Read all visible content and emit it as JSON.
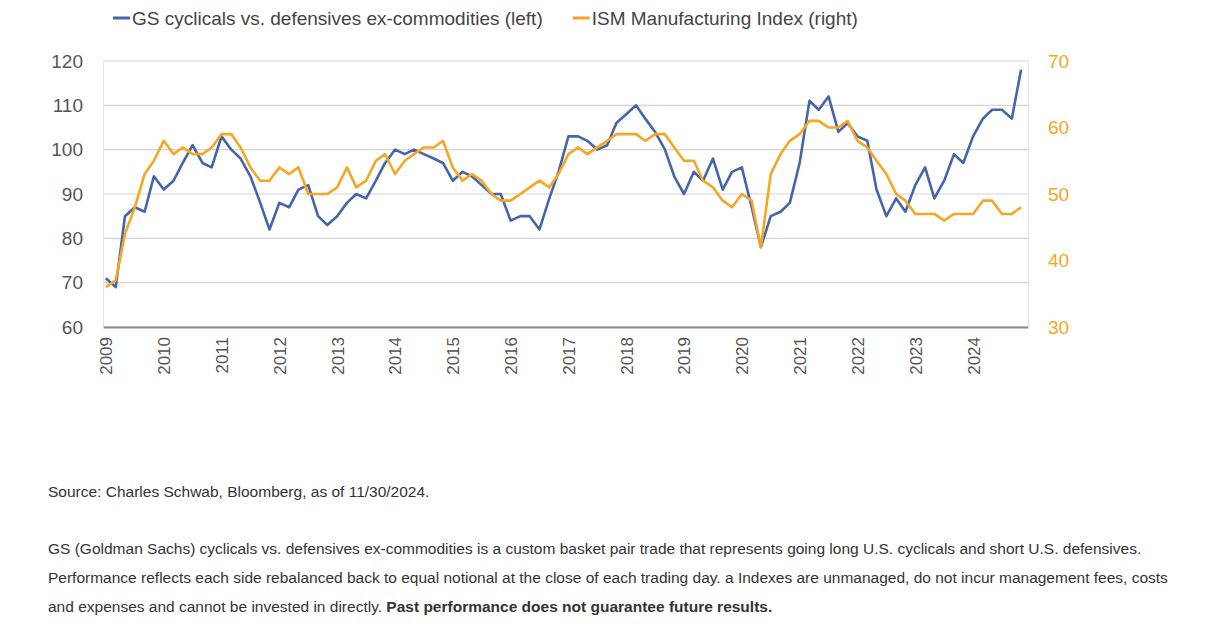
{
  "chart_data": {
    "type": "line",
    "x": [
      2009,
      2009.17,
      2009.33,
      2009.5,
      2009.67,
      2009.83,
      2010,
      2010.17,
      2010.33,
      2010.5,
      2010.67,
      2010.83,
      2011,
      2011.17,
      2011.33,
      2011.5,
      2011.67,
      2011.83,
      2012,
      2012.17,
      2012.33,
      2012.5,
      2012.67,
      2012.83,
      2013,
      2013.17,
      2013.33,
      2013.5,
      2013.67,
      2013.83,
      2014,
      2014.17,
      2014.33,
      2014.5,
      2014.67,
      2014.83,
      2015,
      2015.17,
      2015.33,
      2015.5,
      2015.67,
      2015.83,
      2016,
      2016.17,
      2016.33,
      2016.5,
      2016.67,
      2016.83,
      2017,
      2017.17,
      2017.33,
      2017.5,
      2017.67,
      2017.83,
      2018,
      2018.17,
      2018.33,
      2018.5,
      2018.67,
      2018.83,
      2019,
      2019.17,
      2019.33,
      2019.5,
      2019.67,
      2019.83,
      2020,
      2020.17,
      2020.33,
      2020.5,
      2020.67,
      2020.83,
      2021,
      2021.17,
      2021.33,
      2021.5,
      2021.67,
      2021.83,
      2022,
      2022.17,
      2022.33,
      2022.5,
      2022.67,
      2022.83,
      2023,
      2023.17,
      2023.33,
      2023.5,
      2023.67,
      2023.83,
      2024,
      2024.17,
      2024.33,
      2024.5,
      2024.67,
      2024.83
    ],
    "series": [
      {
        "name": "GS cyclicals vs. defensives ex-commodities (left)",
        "color": "#4465aa",
        "values": [
          71,
          69,
          85,
          87,
          86,
          94,
          91,
          93,
          97,
          101,
          97,
          96,
          103,
          100,
          98,
          94,
          88,
          82,
          88,
          87,
          91,
          92,
          85,
          83,
          85,
          88,
          90,
          89,
          93,
          97,
          100,
          99,
          100,
          99,
          98,
          97,
          93,
          95,
          94,
          92,
          90,
          90,
          84,
          85,
          85,
          82,
          89,
          95,
          103,
          103,
          102,
          100,
          101,
          106,
          108,
          110,
          107,
          104,
          100,
          94,
          90,
          95,
          93,
          98,
          91,
          95,
          96,
          87,
          78,
          85,
          86,
          88,
          97,
          111,
          109,
          112,
          104,
          106,
          103,
          102,
          91,
          85,
          89,
          86,
          92,
          96,
          89,
          93,
          99,
          97,
          103,
          107,
          109,
          109,
          107,
          118
        ]
      },
      {
        "name": "ISM Manufacturing Index (right)",
        "color": "#f6a623",
        "axis": "y2",
        "values": [
          36,
          37,
          44,
          48,
          53,
          55,
          58,
          56,
          57,
          56,
          56,
          57,
          59,
          59,
          57,
          54,
          52,
          52,
          54,
          53,
          54,
          50,
          50,
          50,
          51,
          54,
          51,
          52,
          55,
          56,
          53,
          55,
          56,
          57,
          57,
          58,
          54,
          52,
          53,
          52,
          50,
          49,
          49,
          50,
          51,
          52,
          51,
          53,
          56,
          57,
          56,
          57,
          58,
          59,
          59,
          59,
          58,
          59,
          59,
          57,
          55,
          55,
          52,
          51,
          49,
          48,
          50,
          49,
          42,
          53,
          56,
          58,
          59,
          61,
          61,
          60,
          60,
          61,
          58,
          57,
          55,
          53,
          50,
          49,
          47,
          47,
          47,
          46,
          47,
          47,
          47,
          49,
          49,
          47,
          47,
          48
        ]
      }
    ],
    "xlim": [
      2008.95,
      2024.95
    ],
    "xticks": [
      2009,
      2010,
      2011,
      2012,
      2013,
      2014,
      2015,
      2016,
      2017,
      2018,
      2019,
      2020,
      2021,
      2022,
      2023,
      2024
    ],
    "ylim": [
      60,
      120
    ],
    "yticks": [
      60,
      70,
      80,
      90,
      100,
      110,
      120
    ],
    "y2lim": [
      30,
      70
    ],
    "y2ticks": [
      30,
      40,
      50,
      60,
      70
    ],
    "grid": true,
    "legend": "top",
    "source": "Source: Charles Schwab, Bloomberg, as of 11/30/2024.",
    "footnote": "GS (Goldman Sachs) cyclicals vs. defensives ex-commodities is a custom basket pair trade that represents going long U.S. cyclicals and short U.S. defensives. Performance reflects each side rebalanced back to equal notional at the close of each trading day. a Indexes are unmanaged, do not incur management fees, costs and expenses and cannot be invested in directly.",
    "disclaimer": "Past performance does not guarantee future results."
  }
}
